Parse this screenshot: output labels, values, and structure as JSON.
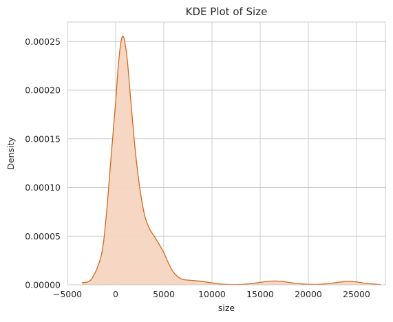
{
  "chart_data": {
    "type": "area",
    "title": "KDE Plot of Size",
    "xlabel": "size",
    "ylabel": "Density",
    "xlim": [
      -5000,
      28000
    ],
    "ylim": [
      0,
      0.00027
    ],
    "grid": true,
    "x_ticks": [
      -5000,
      0,
      5000,
      10000,
      15000,
      20000,
      25000
    ],
    "x_tick_labels": [
      "−5000",
      "0",
      "5000",
      "10000",
      "15000",
      "20000",
      "25000"
    ],
    "y_ticks": [
      0,
      5e-05,
      0.0001,
      0.00015,
      0.0002,
      0.00025
    ],
    "y_tick_labels": [
      "0.00000",
      "0.00005",
      "0.00010",
      "0.00015",
      "0.00020",
      "0.00025"
    ],
    "line_color": "#d2691e",
    "fill_color": "#f5d5c0",
    "series": [
      {
        "x": [
          -3500,
          -2500,
          -1500,
          -1000,
          -500,
          0,
          250,
          500,
          700,
          900,
          1200,
          1500,
          2000,
          2500,
          3000,
          3500,
          4000,
          4500,
          5000,
          5500,
          6000,
          6500,
          7000,
          8000,
          9000,
          10000,
          11000,
          12000,
          13000,
          14000,
          15000,
          16000,
          17000,
          18000,
          19000,
          20000,
          21000,
          22000,
          23000,
          24000,
          25000,
          26000,
          27500
        ],
        "y": [
          2e-06,
          6e-06,
          3e-05,
          6.8e-05,
          0.000128,
          0.000188,
          0.000222,
          0.000246,
          0.000255,
          0.000252,
          0.000232,
          0.000198,
          0.000142,
          0.0001,
          7.2e-05,
          5.8e-05,
          5e-05,
          4.2e-05,
          3.3e-05,
          2.2e-05,
          1.3e-05,
          8e-06,
          5.5e-06,
          4.5e-06,
          3.5e-06,
          2e-06,
          8e-07,
          3e-07,
          4e-07,
          1.2e-06,
          2.5e-06,
          3.8e-06,
          3.8e-06,
          2.5e-06,
          1.2e-06,
          6e-07,
          5e-07,
          1.2e-06,
          2.5e-06,
          3.5e-06,
          3e-06,
          1.5e-06,
          3e-07
        ]
      }
    ]
  }
}
